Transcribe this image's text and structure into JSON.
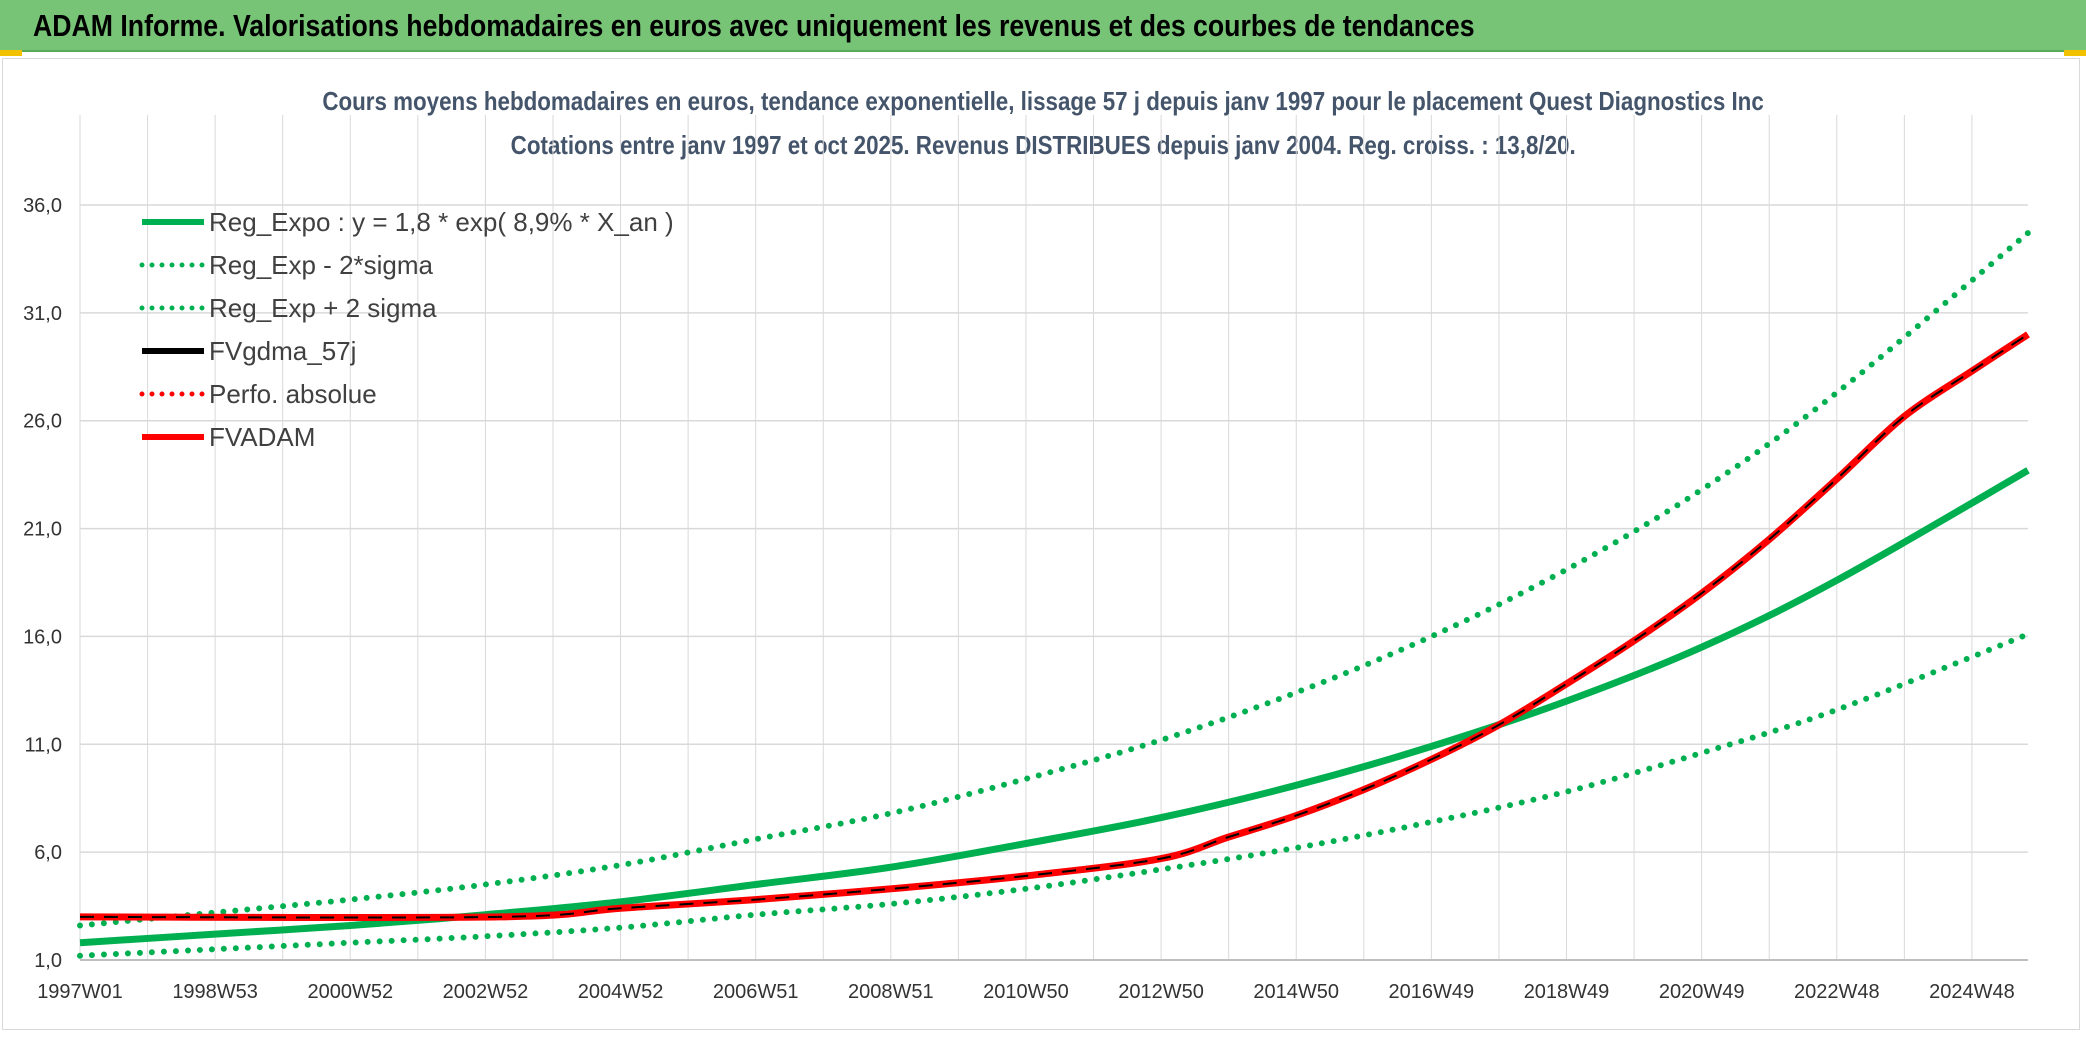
{
  "header": {
    "title": "ADAM Informe. Valorisations hebdomadaires en euros avec uniquement les revenus et des courbes de tendances"
  },
  "chart_data": {
    "type": "line",
    "title_line1": "Cours moyens hebdomadaires en euros, tendance exponentielle, lissage 57 j depuis janv 1997 pour le placement Quest Diagnostics Inc",
    "title_line2": "Cotations entre janv 1997 et oct 2025. Revenus DISTRIBUES depuis janv 2004. Reg. croiss. : 13,8/20.",
    "x_start_year": 1997.0,
    "x_end_year": 2025.83,
    "xlim": [
      1997.0,
      2025.83
    ],
    "x_ticks": [
      {
        "label": "1997W01",
        "year": 1997.0
      },
      {
        "label": "1998W53",
        "year": 1999.0
      },
      {
        "label": "2000W52",
        "year": 2001.0
      },
      {
        "label": "2002W52",
        "year": 2003.0
      },
      {
        "label": "2004W52",
        "year": 2005.0
      },
      {
        "label": "2006W51",
        "year": 2007.0
      },
      {
        "label": "2008W51",
        "year": 2009.0
      },
      {
        "label": "2010W50",
        "year": 2011.0
      },
      {
        "label": "2012W50",
        "year": 2013.0
      },
      {
        "label": "2014W50",
        "year": 2015.0
      },
      {
        "label": "2016W49",
        "year": 2017.0
      },
      {
        "label": "2018W49",
        "year": 2019.0
      },
      {
        "label": "2020W49",
        "year": 2021.0
      },
      {
        "label": "2022W48",
        "year": 2023.0
      },
      {
        "label": "2024W48",
        "year": 2025.0
      }
    ],
    "minor_grid_step_years": 1,
    "y_ticks": [
      "1,0",
      "6,0",
      "11,0",
      "16,0",
      "21,0",
      "26,0",
      "31,0",
      "36,0"
    ],
    "ylim": [
      1.0,
      36.0
    ],
    "y_tick_step": 5.0,
    "colors": {
      "green": "#00b050",
      "red": "#ff0000",
      "black": "#000000",
      "grid": "#d9d9d9"
    },
    "legend": [
      {
        "label": "Reg_Expo : y = 1,8 * exp( 8,9% *  X_an )",
        "color": "#00b050",
        "style": "solid"
      },
      {
        "label": "Reg_Exp - 2*sigma",
        "color": "#00b050",
        "style": "dotted"
      },
      {
        "label": "Reg_Exp + 2 sigma",
        "color": "#00b050",
        "style": "dotted"
      },
      {
        "label": "FVgdma_57j",
        "color": "#000000",
        "style": "solid"
      },
      {
        "label": "Perfo. absolue",
        "color": "#ff0000",
        "style": "dotted"
      },
      {
        "label": "FVADAM",
        "color": "#ff0000",
        "style": "solid"
      }
    ],
    "series": [
      {
        "name": "Reg_Expo",
        "style": "solid",
        "color": "#00b050",
        "x": [
          1997,
          1999,
          2001,
          2003,
          2005,
          2007,
          2009,
          2011,
          2013,
          2015,
          2017,
          2019,
          2021,
          2023,
          2025.83
        ],
        "values": [
          1.8,
          2.2,
          2.6,
          3.1,
          3.7,
          4.5,
          5.3,
          6.4,
          7.6,
          9.1,
          10.9,
          13.0,
          15.5,
          18.6,
          23.7
        ]
      },
      {
        "name": "Reg_Exp - 2*sigma",
        "style": "dotted",
        "color": "#00b050",
        "x": [
          1997,
          1999,
          2001,
          2003,
          2005,
          2007,
          2009,
          2011,
          2013,
          2015,
          2017,
          2019,
          2021,
          2023,
          2025.83
        ],
        "values": [
          1.2,
          1.5,
          1.8,
          2.1,
          2.5,
          3.1,
          3.6,
          4.3,
          5.2,
          6.2,
          7.4,
          8.8,
          10.6,
          12.6,
          16.1
        ]
      },
      {
        "name": "Reg_Exp + 2 sigma",
        "style": "dotted",
        "color": "#00b050",
        "x": [
          1997,
          1999,
          2001,
          2003,
          2005,
          2007,
          2009,
          2011,
          2013,
          2015,
          2017,
          2019,
          2021,
          2023,
          2025.83
        ],
        "values": [
          2.6,
          3.2,
          3.8,
          4.5,
          5.4,
          6.6,
          7.8,
          9.4,
          11.2,
          13.4,
          16.0,
          19.1,
          22.8,
          27.3,
          34.7
        ]
      },
      {
        "name": "FVADAM",
        "style": "solid",
        "color": "#ff0000",
        "x": [
          1997,
          2003.2,
          2005,
          2007,
          2009,
          2011,
          2013,
          2014,
          2015,
          2016,
          2017,
          2018,
          2019,
          2020,
          2021,
          2022,
          2023,
          2024,
          2025,
          2025.83
        ],
        "values": [
          3.0,
          3.0,
          3.4,
          3.8,
          4.3,
          4.9,
          5.7,
          6.7,
          7.7,
          8.9,
          10.3,
          11.9,
          13.8,
          15.8,
          18.0,
          20.5,
          23.3,
          26.2,
          28.3,
          30.0
        ]
      },
      {
        "name": "Perfo. absolue",
        "style": "dotted",
        "color": "#ff0000",
        "x": [
          1997,
          2003.2,
          2005,
          2007,
          2009,
          2011,
          2013,
          2014,
          2015,
          2016,
          2017,
          2018,
          2019,
          2020,
          2021,
          2022,
          2023,
          2024,
          2025,
          2025.83
        ],
        "values": [
          3.0,
          3.0,
          3.4,
          3.8,
          4.3,
          4.9,
          5.7,
          6.7,
          7.7,
          8.9,
          10.3,
          11.9,
          13.8,
          15.8,
          18.0,
          20.5,
          23.3,
          26.2,
          28.3,
          30.0
        ]
      },
      {
        "name": "FVgdma_57j",
        "style": "solid",
        "color": "#000000",
        "x": [
          1997,
          2003.2,
          2005,
          2007,
          2009,
          2011,
          2013,
          2014,
          2015,
          2016,
          2017,
          2018,
          2019,
          2020,
          2021,
          2022,
          2023,
          2024,
          2025,
          2025.83
        ],
        "values": [
          3.0,
          3.0,
          3.4,
          3.8,
          4.3,
          4.9,
          5.7,
          6.7,
          7.7,
          8.9,
          10.3,
          11.9,
          13.8,
          15.8,
          18.0,
          20.5,
          23.3,
          26.2,
          28.3,
          30.0
        ]
      }
    ]
  }
}
